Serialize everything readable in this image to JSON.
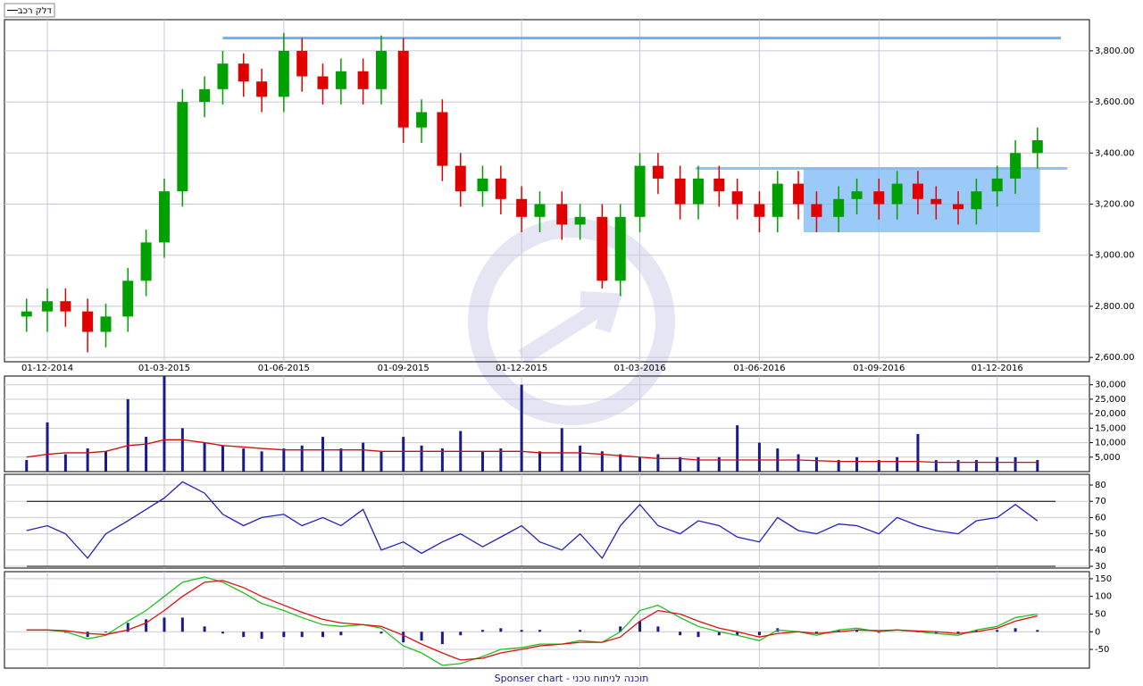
{
  "chart_data": [
    {
      "type": "candlestick",
      "x": [
        "2014-11-15",
        "2014-12-01",
        "2014-12-15",
        "2015-01-01",
        "2015-01-15",
        "2015-02-01",
        "2015-02-15",
        "2015-03-01",
        "2015-03-15",
        "2015-04-01",
        "2015-04-15",
        "2015-05-01",
        "2015-05-15",
        "2015-06-01",
        "2015-06-15",
        "2015-07-01",
        "2015-07-15",
        "2015-08-01",
        "2015-08-15",
        "2015-09-01",
        "2015-09-15",
        "2015-10-01",
        "2015-10-15",
        "2015-11-01",
        "2015-11-15",
        "2015-12-01",
        "2015-12-15",
        "2016-01-01",
        "2016-01-15",
        "2016-02-01",
        "2016-02-15",
        "2016-03-01",
        "2016-03-15",
        "2016-04-01",
        "2016-04-15",
        "2016-05-01",
        "2016-05-15",
        "2016-06-01",
        "2016-06-15",
        "2016-07-01",
        "2016-07-15",
        "2016-08-01",
        "2016-08-15",
        "2016-09-01",
        "2016-09-15",
        "2016-10-01",
        "2016-10-15",
        "2016-11-01",
        "2016-11-15",
        "2016-12-01",
        "2016-12-15",
        "2017-01-01"
      ],
      "series": [
        {
          "name": "דלק רכב",
          "up_color": "#00a000",
          "down_color": "#e00000",
          "open": [
            2760,
            2780,
            2820,
            2780,
            2700,
            2760,
            2900,
            3050,
            3250,
            3600,
            3650,
            3750,
            3680,
            3620,
            3800,
            3700,
            3650,
            3720,
            3650,
            3800,
            3500,
            3560,
            3350,
            3250,
            3300,
            3220,
            3150,
            3200,
            3120,
            3150,
            2900,
            3150,
            3350,
            3300,
            3200,
            3300,
            3250,
            3200,
            3150,
            3280,
            3200,
            3150,
            3220,
            3250,
            3200,
            3280,
            3220,
            3200,
            3180,
            3250,
            3300,
            3400
          ],
          "high": [
            2830,
            2870,
            2870,
            2830,
            2810,
            2950,
            3100,
            3300,
            3650,
            3700,
            3800,
            3790,
            3730,
            3870,
            3850,
            3750,
            3770,
            3770,
            3860,
            3850,
            3610,
            3610,
            3400,
            3350,
            3350,
            3270,
            3250,
            3250,
            3200,
            3200,
            3200,
            3400,
            3400,
            3350,
            3350,
            3350,
            3300,
            3250,
            3330,
            3330,
            3250,
            3270,
            3300,
            3300,
            3330,
            3330,
            3270,
            3250,
            3300,
            3350,
            3450,
            3500
          ],
          "low": [
            2700,
            2700,
            2720,
            2620,
            2640,
            2700,
            2840,
            2990,
            3190,
            3540,
            3590,
            3620,
            3560,
            3560,
            3640,
            3590,
            3590,
            3590,
            3590,
            3440,
            3440,
            3290,
            3190,
            3190,
            3160,
            3090,
            3090,
            3060,
            3060,
            2870,
            2840,
            3090,
            3240,
            3140,
            3140,
            3190,
            3140,
            3090,
            3090,
            3140,
            3090,
            3090,
            3160,
            3140,
            3140,
            3160,
            3140,
            3120,
            3120,
            3190,
            3240,
            3340
          ],
          "close": [
            2780,
            2820,
            2780,
            2700,
            2760,
            2900,
            3050,
            3250,
            3600,
            3650,
            3750,
            3680,
            3620,
            3800,
            3700,
            3650,
            3720,
            3650,
            3800,
            3500,
            3560,
            3350,
            3250,
            3300,
            3220,
            3150,
            3200,
            3120,
            3150,
            2900,
            3150,
            3350,
            3300,
            3200,
            3300,
            3250,
            3200,
            3150,
            3280,
            3200,
            3150,
            3220,
            3250,
            3200,
            3280,
            3220,
            3200,
            3180,
            3250,
            3300,
            3400,
            3450
          ]
        }
      ],
      "xlim": [
        "2014-10-29",
        "2017-02-10"
      ],
      "xticks": [
        {
          "value": "2014-12-01",
          "label": "01-12-2014"
        },
        {
          "value": "2015-03-01",
          "label": "01-03-2015"
        },
        {
          "value": "2015-06-01",
          "label": "01-06-2015"
        },
        {
          "value": "2015-09-01",
          "label": "01-09-2015"
        },
        {
          "value": "2015-12-01",
          "label": "01-12-2015"
        },
        {
          "value": "2016-03-01",
          "label": "01-03-2016"
        },
        {
          "value": "2016-06-01",
          "label": "01-06-2016"
        },
        {
          "value": "2016-09-01",
          "label": "01-09-2016"
        },
        {
          "value": "2016-12-01",
          "label": "01-12-2016"
        }
      ],
      "ylim": [
        2583,
        3922
      ],
      "yticks": [
        {
          "value": 2600,
          "label": "2,600.00"
        },
        {
          "value": 2800,
          "label": "2,800.00"
        },
        {
          "value": 3000,
          "label": "3,000.00"
        },
        {
          "value": 3200,
          "label": "3,200.00"
        },
        {
          "value": 3400,
          "label": "3,400.00"
        },
        {
          "value": 3600,
          "label": "3,600.00"
        },
        {
          "value": 3800,
          "label": "3,800.00"
        }
      ],
      "grid": true,
      "lines": [
        {
          "x": [
            "2015-04-15",
            "2017-01-19"
          ],
          "y": 3850,
          "color": "#6fb0f0"
        },
        {
          "x": [
            "2016-04-13",
            "2017-01-24"
          ],
          "y": 3340,
          "color": "#8cc4f5"
        }
      ],
      "box": {
        "x": [
          "2016-07-05",
          "2017-01-03"
        ],
        "y": [
          3090,
          3340
        ],
        "color": "#7ab8f5"
      }
    },
    {
      "type": "bar",
      "color": "#1a1a8c",
      "values": [
        4000,
        17000,
        6000,
        8000,
        7000,
        25000,
        12000,
        33000,
        15000,
        10000,
        9000,
        8000,
        7000,
        8000,
        9000,
        12000,
        8000,
        10000,
        7000,
        12000,
        9000,
        8000,
        14000,
        7000,
        8000,
        30000,
        7000,
        15000,
        9000,
        7000,
        6000,
        5000,
        6000,
        5000,
        5000,
        5000,
        16000,
        10000,
        8000,
        6000,
        5000,
        4000,
        5000,
        4000,
        5000,
        13000,
        4000,
        4000,
        4000,
        5000,
        5000,
        4000
      ],
      "average": [
        5000,
        6000,
        6500,
        6500,
        7000,
        9000,
        9500,
        11000,
        11000,
        10000,
        9000,
        8500,
        8000,
        7500,
        7500,
        7500,
        7500,
        7500,
        7000,
        7000,
        7000,
        7000,
        7000,
        7000,
        7000,
        7000,
        6500,
        6500,
        6500,
        6000,
        5500,
        5000,
        4500,
        4500,
        4000,
        4000,
        4000,
        4000,
        4000,
        4000,
        3800,
        3500,
        3500,
        3500,
        3500,
        3500,
        3200,
        3200,
        3200,
        3200,
        3200,
        3200
      ],
      "average_color": "#d01010",
      "ylim": [
        0,
        33000
      ],
      "yticks": [
        {
          "value": 5000,
          "label": "5,000"
        },
        {
          "value": 10000,
          "label": "10,000"
        },
        {
          "value": 15000,
          "label": "15,000"
        },
        {
          "value": 20000,
          "label": "20,000"
        },
        {
          "value": 25000,
          "label": "25,000"
        },
        {
          "value": 30000,
          "label": "30,000"
        }
      ],
      "grid": true
    },
    {
      "type": "line",
      "series": [
        {
          "color": "#2020c0",
          "values": [
            52,
            55,
            50,
            35,
            50,
            58,
            65,
            72,
            82,
            75,
            62,
            55,
            60,
            62,
            55,
            60,
            55,
            65,
            40,
            45,
            38,
            45,
            50,
            42,
            48,
            55,
            45,
            40,
            50,
            35,
            55,
            68,
            55,
            50,
            58,
            55,
            48,
            45,
            60,
            52,
            50,
            56,
            55,
            50,
            60,
            55,
            52,
            50,
            58,
            60,
            68,
            58
          ]
        }
      ],
      "levels": [
        70,
        30
      ],
      "ylim": [
        28.9,
        86.6
      ],
      "yticks": [
        30,
        40,
        50,
        60,
        70,
        80
      ],
      "grid": true
    },
    {
      "type": "line",
      "series": [
        {
          "color": "#20c020",
          "values": [
            5,
            5,
            0,
            -20,
            -10,
            30,
            60,
            100,
            140,
            155,
            140,
            110,
            80,
            60,
            40,
            20,
            15,
            20,
            10,
            -40,
            -60,
            -95,
            -90,
            -70,
            -50,
            -45,
            -35,
            -35,
            -25,
            -30,
            0,
            60,
            75,
            40,
            15,
            0,
            -10,
            -25,
            5,
            0,
            -10,
            5,
            10,
            0,
            5,
            0,
            -5,
            -10,
            5,
            15,
            40,
            50
          ]
        },
        {
          "color": "#e01010",
          "values": [
            5,
            5,
            3,
            -5,
            -8,
            5,
            25,
            60,
            100,
            140,
            145,
            125,
            100,
            75,
            55,
            35,
            25,
            20,
            15,
            -10,
            -35,
            -60,
            -80,
            -75,
            -60,
            -50,
            -40,
            -35,
            -30,
            -30,
            -15,
            30,
            60,
            50,
            30,
            10,
            0,
            -15,
            -5,
            0,
            -5,
            0,
            5,
            3,
            5,
            2,
            0,
            -5,
            0,
            10,
            30,
            45
          ]
        }
      ],
      "histogram": {
        "color": "#1a1a8c",
        "values": [
          0,
          0,
          -3,
          -15,
          -2,
          25,
          35,
          40,
          40,
          15,
          -5,
          -15,
          -20,
          -15,
          -15,
          -15,
          -10,
          0,
          -5,
          -30,
          -25,
          -35,
          -10,
          5,
          10,
          5,
          5,
          0,
          5,
          0,
          15,
          30,
          15,
          -10,
          -15,
          -10,
          -10,
          -10,
          10,
          0,
          -5,
          5,
          5,
          -3,
          0,
          -2,
          -5,
          -5,
          5,
          5,
          10,
          5
        ]
      },
      "ylim": [
        -103,
        170
      ],
      "yticks": [
        -50,
        0,
        50,
        100,
        150
      ],
      "grid": true
    }
  ],
  "footer": "Sponser chart - תוכנה לניתוח טכני"
}
